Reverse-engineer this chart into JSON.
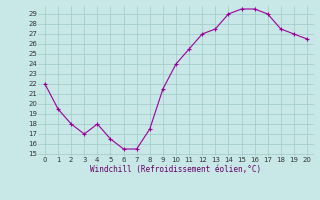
{
  "x": [
    0,
    1,
    2,
    3,
    4,
    5,
    6,
    7,
    8,
    9,
    10,
    11,
    12,
    13,
    14,
    15,
    16,
    17,
    18,
    19,
    20
  ],
  "y": [
    22,
    19.5,
    18,
    17,
    18,
    16.5,
    15.5,
    15.5,
    17.5,
    21.5,
    24,
    25.5,
    27,
    27.5,
    29,
    29.5,
    29.5,
    29,
    27.5,
    27,
    26.5
  ],
  "line_color": "#990099",
  "marker": "+",
  "marker_size": 3,
  "linewidth": 0.8,
  "markeredgewidth": 0.8,
  "xlabel": "Windchill (Refroidissement éolien,°C)",
  "xlabel_fontsize": 5.5,
  "ylim_min": 14.8,
  "ylim_max": 29.8,
  "xlim_min": -0.5,
  "xlim_max": 20.5,
  "yticks": [
    15,
    16,
    17,
    18,
    19,
    20,
    21,
    22,
    23,
    24,
    25,
    26,
    27,
    28,
    29
  ],
  "xticks": [
    0,
    1,
    2,
    3,
    4,
    5,
    6,
    7,
    8,
    9,
    10,
    11,
    12,
    13,
    14,
    15,
    16,
    17,
    18,
    19,
    20
  ],
  "bg_color": "#c8e8e8",
  "grid_color": "#a0c8c8",
  "tick_fontsize": 5,
  "label_color": "#660066"
}
